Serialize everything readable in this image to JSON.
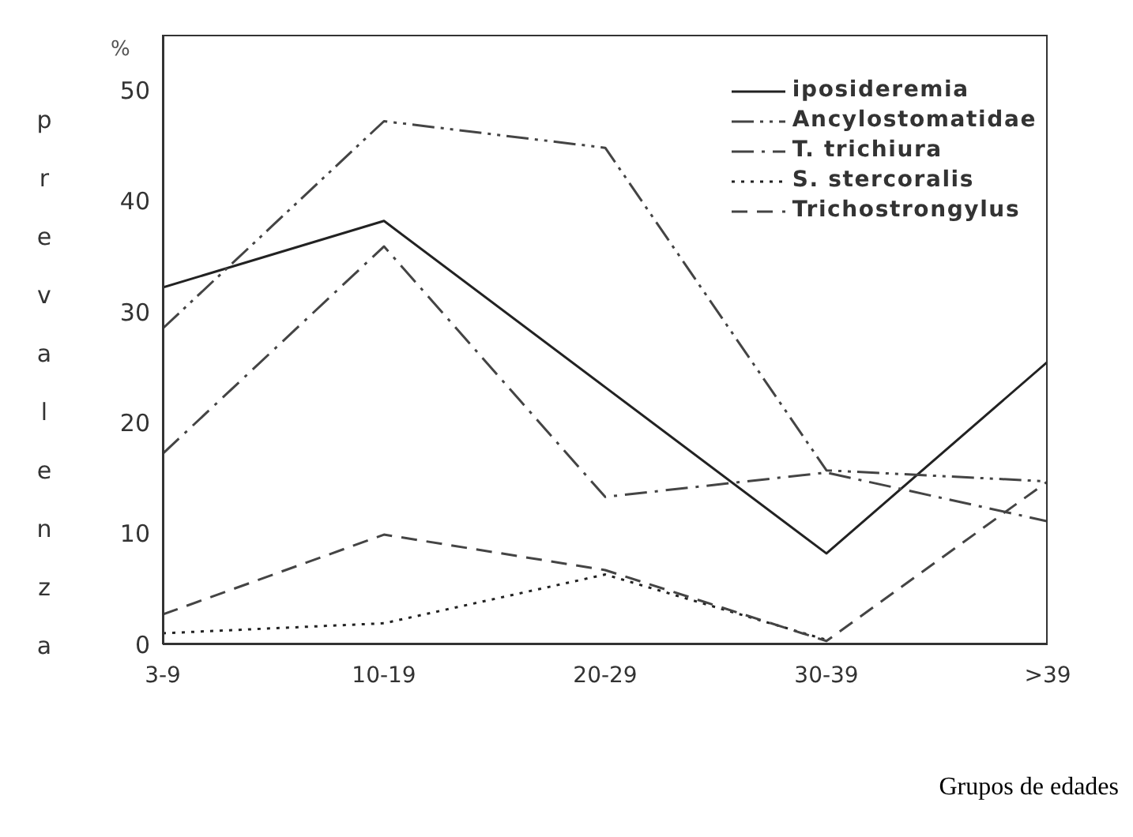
{
  "chart_data": {
    "type": "line",
    "ylabel": "prevalenza",
    "annotations": [
      "%",
      "Grupos de edades"
    ],
    "categories": [
      "3-9",
      "10-19",
      "20-29",
      "30-39",
      ">39"
    ],
    "series": [
      {
        "name": "iposideremia",
        "color": "#222222",
        "line_style": "solid",
        "values": [
          32.2,
          38.2,
          23.2,
          8.2,
          25.5
        ]
      },
      {
        "name": "Ancylostomatidae",
        "color": "#444444",
        "line_style": "dashdotdot",
        "values": [
          28.5,
          47.2,
          44.8,
          15.7,
          14.7
        ]
      },
      {
        "name": "T. trichiura",
        "color": "#444444",
        "line_style": "dashdot",
        "values": [
          17.2,
          35.9,
          13.3,
          15.5,
          11.1
        ]
      },
      {
        "name": "S. stercoralis",
        "color": "#222222",
        "line_style": "dotted",
        "values": [
          1.0,
          1.9,
          6.3,
          0.4,
          null
        ]
      },
      {
        "name": "Trichostrongylus",
        "color": "#444444",
        "line_style": "dashed",
        "values": [
          2.7,
          9.9,
          6.7,
          0.3,
          14.7
        ]
      }
    ],
    "ylim": [
      0,
      55
    ],
    "yticks": [
      0,
      10,
      20,
      30,
      40,
      50
    ],
    "legend": "top right",
    "marker": "none"
  }
}
